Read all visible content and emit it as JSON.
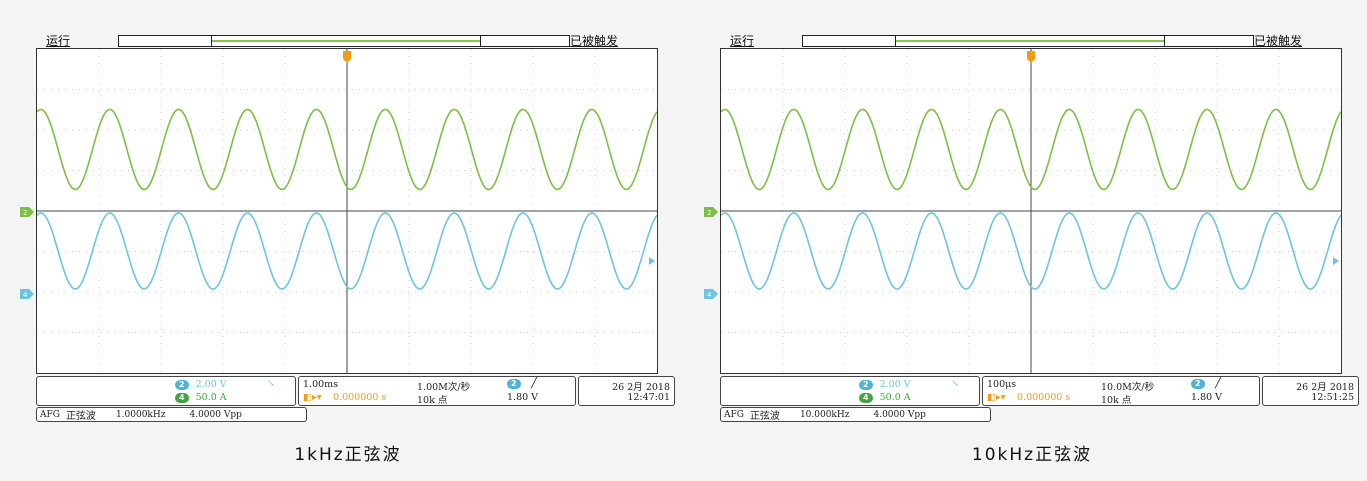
{
  "panels": [
    {
      "run_label": "运行",
      "trigger_status": "已被触发",
      "ch_badge_2": "2",
      "ch_badge_4": "4",
      "ch2_scale": "2.00 V",
      "ch4_scale": "50.0 A",
      "timebase": "1.00ms",
      "trigger_offset": "0.000000 s",
      "sample_rate": "1.00M次/秒",
      "record_length": "10k 点",
      "trigger_level": "1.80 V",
      "date": "26 2月 2018",
      "time": "12:47:01",
      "afg_label": "AFG",
      "afg_waveform": "正弦波",
      "afg_freq": "1.0000kHz",
      "afg_amp": "4.0000 Vpp",
      "caption": "1kHz正弦波",
      "cycles": 9,
      "colors": {
        "ch2": "#7bc043",
        "ch4": "#6ec4de",
        "trigger": "#f39c12"
      }
    },
    {
      "run_label": "运行",
      "trigger_status": "已被触发",
      "ch_badge_2": "2",
      "ch_badge_4": "4",
      "ch2_scale": "2.00 V",
      "ch4_scale": "50.0 A",
      "timebase": "100μs",
      "trigger_offset": "0.000000 s",
      "sample_rate": "10.0M次/秒",
      "record_length": "10k 点",
      "trigger_level": "1.80 V",
      "date": "26 2月 2018",
      "time": "12:51:25",
      "afg_label": "AFG",
      "afg_waveform": "正弦波",
      "afg_freq": "10.000kHz",
      "afg_amp": "4.0000 Vpp",
      "caption": "10kHz正弦波",
      "cycles": 9,
      "colors": {
        "ch2": "#7bc043",
        "ch4": "#6ec4de",
        "trigger": "#f39c12"
      }
    }
  ]
}
